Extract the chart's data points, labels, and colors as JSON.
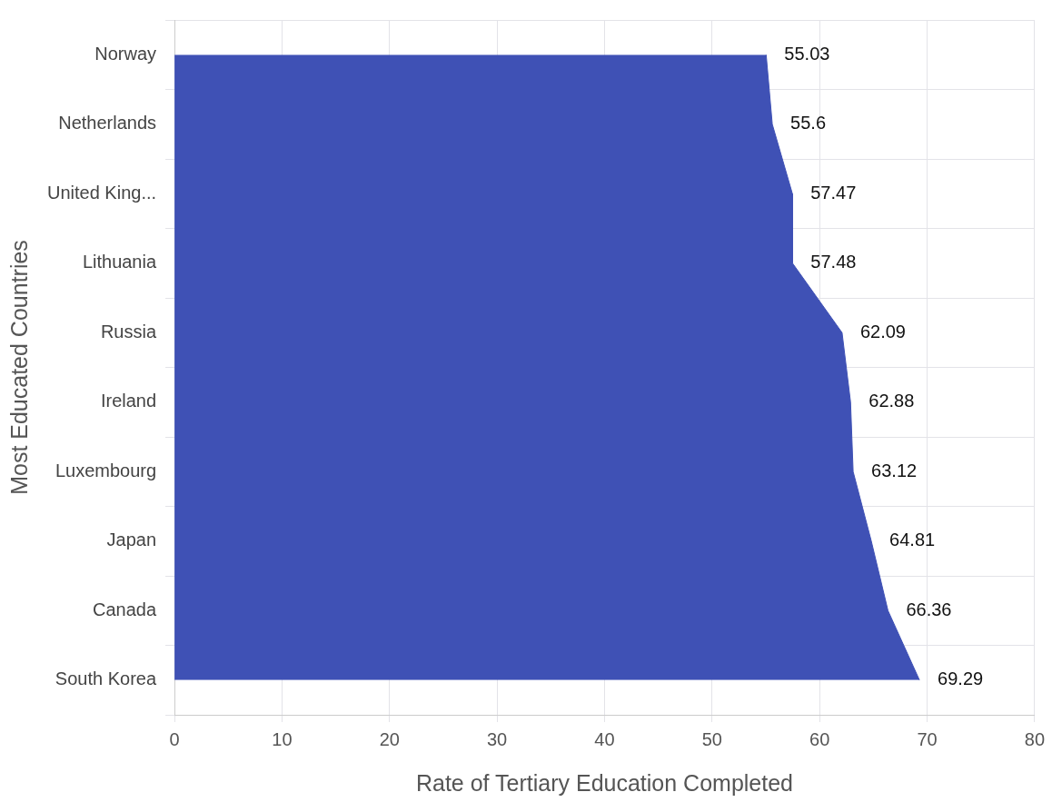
{
  "chart_data": {
    "type": "area",
    "orientation": "horizontal",
    "xlabel": "Rate of Tertiary Education Completed",
    "ylabel": "Most Educated Countries",
    "categories": [
      "Norway",
      "Netherlands",
      "United King...",
      "Lithuania",
      "Russia",
      "Ireland",
      "Luxembourg",
      "Japan",
      "Canada",
      "South Korea"
    ],
    "values": [
      55.03,
      55.6,
      57.47,
      57.48,
      62.09,
      62.88,
      63.12,
      64.81,
      66.36,
      69.29
    ],
    "color": "#3f51b5",
    "xlim": [
      0,
      80
    ],
    "xticks": [
      0,
      10,
      20,
      30,
      40,
      50,
      60,
      70,
      80
    ],
    "grid": true,
    "legend": false,
    "data_labels": true,
    "marker": "none"
  }
}
